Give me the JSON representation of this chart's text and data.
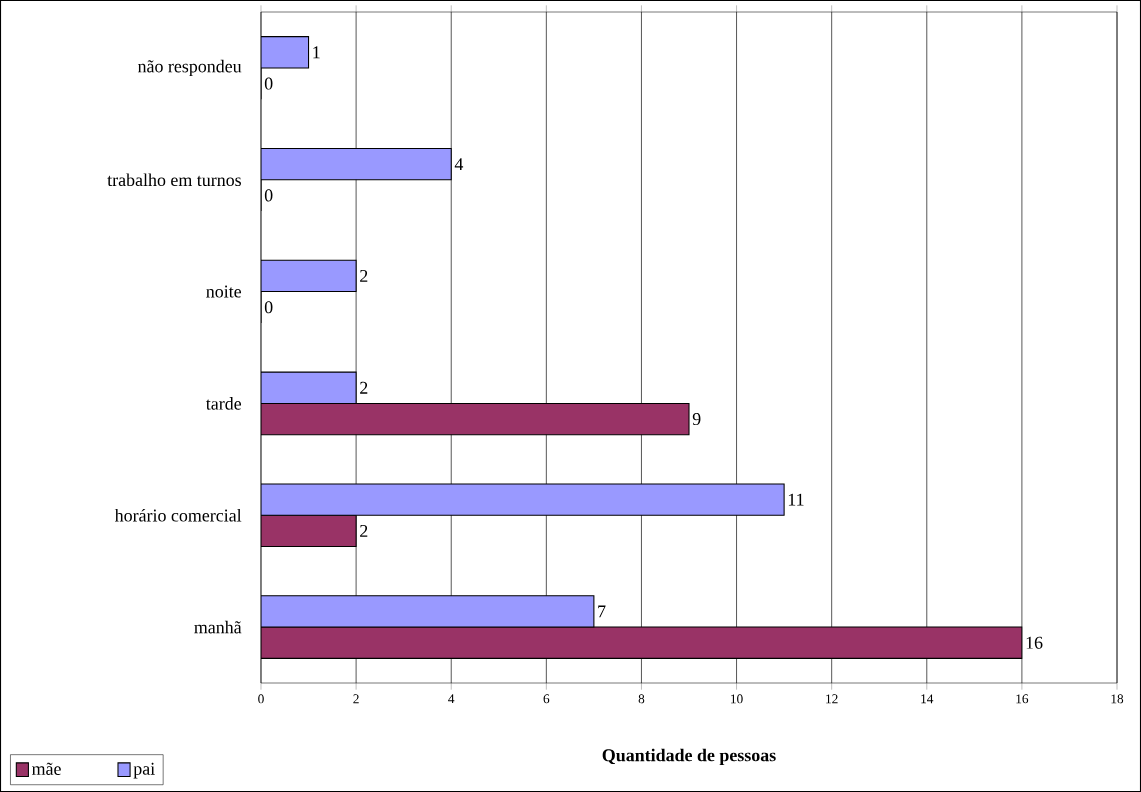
{
  "chart_data": {
    "type": "bar",
    "orientation": "horizontal",
    "xlabel": "Quantidade de pessoas",
    "categories": [
      "não respondeu",
      "trabalho em turnos",
      "noite",
      "tarde",
      "horário comercial",
      "manhã"
    ],
    "series": [
      {
        "name": "mãe",
        "color": "#993366",
        "values": [
          0,
          0,
          0,
          9,
          2,
          16
        ]
      },
      {
        "name": "pai",
        "color": "#9999ff",
        "values": [
          1,
          4,
          2,
          2,
          11,
          7
        ]
      }
    ],
    "xlim": [
      0,
      18
    ],
    "xticks": [
      0,
      2,
      4,
      6,
      8,
      10,
      12,
      14,
      16,
      18
    ],
    "grid": "x",
    "legend": "bottom left",
    "data_labels": true
  }
}
